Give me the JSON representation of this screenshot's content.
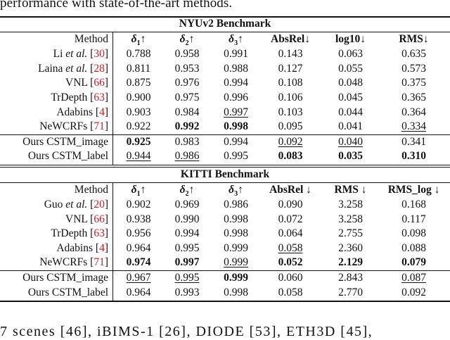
{
  "top_text": "performance with state-of-the-art methods.",
  "bottom_text": "7 scenes [46], iBIMS-1 [26], DIODE [53], ETH3D [45],",
  "tables": [
    {
      "title": "NYUv2 Benchmark",
      "method_header": "Method",
      "columns": [
        "δ₁↑",
        "δ₂↑",
        "δ₃↑",
        "AbsRel↓",
        "log10↓",
        "RMS↓"
      ],
      "groups": [
        [
          {
            "name": "Li",
            "etal": "et al.",
            "ref": "30",
            "values": [
              "0.788",
              "0.958",
              "0.991",
              "0.143",
              "0.063",
              "0.635"
            ],
            "bold": [],
            "underline": []
          },
          {
            "name": "Laina",
            "etal": "et al.",
            "ref": "28",
            "values": [
              "0.811",
              "0.953",
              "0.988",
              "0.127",
              "0.055",
              "0.573"
            ],
            "bold": [],
            "underline": []
          },
          {
            "name": "VNL",
            "etal": "",
            "ref": "66",
            "values": [
              "0.875",
              "0.976",
              "0.994",
              "0.108",
              "0.048",
              "0.375"
            ],
            "bold": [],
            "underline": []
          },
          {
            "name": "TrDepth",
            "etal": "",
            "ref": "63",
            "values": [
              "0.900",
              "0.975",
              "0.996",
              "0.106",
              "0.045",
              "0.365"
            ],
            "bold": [],
            "underline": []
          },
          {
            "name": "Adabins",
            "etal": "",
            "ref": "4",
            "values": [
              "0.903",
              "0.984",
              "0.997",
              "0.103",
              "0.044",
              "0.364"
            ],
            "bold": [],
            "underline": [
              2
            ]
          },
          {
            "name": "NeWCRFs",
            "etal": "",
            "ref": "71",
            "values": [
              "0.922",
              "0.992",
              "0.998",
              "0.095",
              "0.041",
              "0.334"
            ],
            "bold": [
              1,
              2
            ],
            "underline": [
              5
            ]
          }
        ],
        [
          {
            "name": "Ours CSTM_image",
            "etal": "",
            "ref": "",
            "values": [
              "0.925",
              "0.983",
              "0.994",
              "0.092",
              "0.040",
              "0.341"
            ],
            "bold": [
              0
            ],
            "underline": [
              3,
              4
            ]
          },
          {
            "name": "Ours CSTM_label",
            "etal": "",
            "ref": "",
            "values": [
              "0.944",
              "0.986",
              "0.995",
              "0.083",
              "0.035",
              "0.310"
            ],
            "bold": [
              3,
              4,
              5
            ],
            "underline": [
              0,
              1
            ]
          }
        ]
      ]
    },
    {
      "title": "KITTI Benchmark",
      "method_header": "Method",
      "columns": [
        "δ₁↑",
        "δ₂↑",
        "δ₃↑",
        "AbsRel ↓",
        "RMS ↓",
        "RMS_log ↓"
      ],
      "groups": [
        [
          {
            "name": "Guo",
            "etal": "et al.",
            "ref": "20",
            "values": [
              "0.902",
              "0.969",
              "0.986",
              "0.090",
              "3.258",
              "0.168"
            ],
            "bold": [],
            "underline": []
          },
          {
            "name": "VNL",
            "etal": "",
            "ref": "66",
            "values": [
              "0.938",
              "0.990",
              "0.998",
              "0.072",
              "3.258",
              "0.117"
            ],
            "bold": [],
            "underline": []
          },
          {
            "name": "TrDepth",
            "etal": "",
            "ref": "63",
            "values": [
              "0.956",
              "0.994",
              "0.998",
              "0.064",
              "2.755",
              "0.098"
            ],
            "bold": [],
            "underline": []
          },
          {
            "name": "Adabins",
            "etal": "",
            "ref": "4",
            "values": [
              "0.964",
              "0.995",
              "0.999",
              "0.058",
              "2.360",
              "0.088"
            ],
            "bold": [],
            "underline": [
              3
            ]
          },
          {
            "name": "NeWCRFs",
            "etal": "",
            "ref": "71",
            "values": [
              "0.974",
              "0.997",
              "0.999",
              "0.052",
              "2.129",
              "0.079"
            ],
            "bold": [
              0,
              1,
              3,
              4,
              5
            ],
            "underline": [
              2
            ]
          }
        ],
        [
          {
            "name": "Ours CSTM_image",
            "etal": "",
            "ref": "",
            "values": [
              "0.967",
              "0.995",
              "0.999",
              "0.060",
              "2.843",
              "0.087"
            ],
            "bold": [
              2
            ],
            "underline": [
              0,
              1,
              5
            ]
          },
          {
            "name": "Ours CSTM_label",
            "etal": "",
            "ref": "",
            "values": [
              "0.964",
              "0.993",
              "0.998",
              "0.058",
              "2.770",
              "0.092"
            ],
            "bold": [],
            "underline": []
          }
        ]
      ]
    }
  ]
}
